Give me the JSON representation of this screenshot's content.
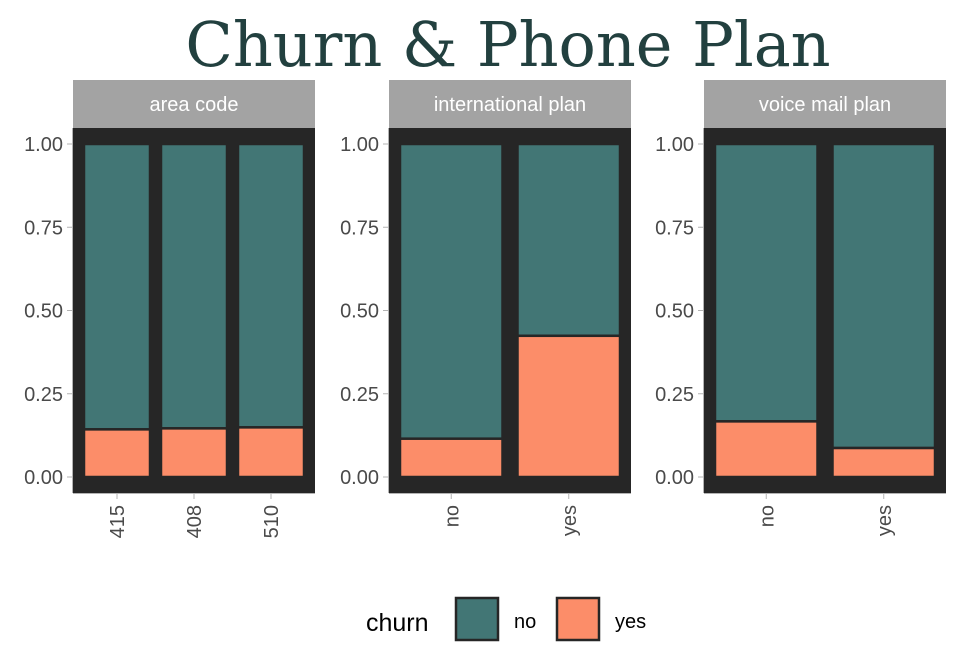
{
  "chart_data": {
    "type": "bar",
    "stacked": true,
    "title": "Churn & Phone Plan",
    "ylim": [
      0,
      1
    ],
    "yticks": [
      "0.00",
      "0.25",
      "0.50",
      "0.75",
      "1.00"
    ],
    "legend": {
      "title": "churn",
      "position": "bottom",
      "entries": [
        {
          "name": "no",
          "color": "#427675"
        },
        {
          "name": "yes",
          "color": "#fc8d69"
        }
      ]
    },
    "colors": {
      "panel_background": "#262626",
      "strip_background": "#a3a3a3",
      "title": "#22403f"
    },
    "panels": [
      {
        "label": "area code",
        "categories": [
          "415",
          "408",
          "510"
        ],
        "series": [
          {
            "name": "no",
            "values": [
              0.857,
              0.854,
              0.851
            ]
          },
          {
            "name": "yes",
            "values": [
              0.143,
              0.146,
              0.149
            ]
          }
        ]
      },
      {
        "label": "international plan",
        "categories": [
          "no",
          "yes"
        ],
        "series": [
          {
            "name": "no",
            "values": [
              0.885,
              0.576
            ]
          },
          {
            "name": "yes",
            "values": [
              0.115,
              0.424
            ]
          }
        ]
      },
      {
        "label": "voice mail plan",
        "categories": [
          "no",
          "yes"
        ],
        "series": [
          {
            "name": "no",
            "values": [
              0.833,
              0.913
            ]
          },
          {
            "name": "yes",
            "values": [
              0.167,
              0.087
            ]
          }
        ]
      }
    ]
  }
}
